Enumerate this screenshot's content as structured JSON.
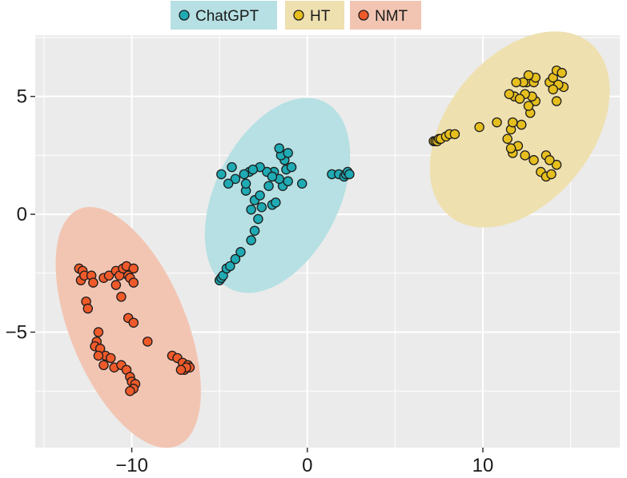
{
  "chart_data": {
    "type": "scatter",
    "title": "",
    "xlabel": "",
    "ylabel": "",
    "xlim": [
      -15.5,
      17.8
    ],
    "ylim": [
      -9.9,
      7.6
    ],
    "x_ticks": [
      -10,
      0,
      10
    ],
    "x_tick_labels": [
      "−10",
      "0",
      "10"
    ],
    "y_ticks": [
      5,
      0,
      -5
    ],
    "y_tick_labels": [
      "5",
      "0",
      "−5"
    ],
    "grid": true,
    "legend_position": "top",
    "colors": {
      "panel": "#ebebeb",
      "grid": "#ffffff",
      "ChatGPT": "#1faab4",
      "HT": "#e6bf1e",
      "NMT": "#ef5a2a",
      "ChatGPT_ellipse": "#b6e0e3",
      "HT_ellipse": "#efe0b0",
      "NMT_ellipse": "#f2c5b3"
    },
    "ellipses": [
      {
        "series": "ChatGPT",
        "cx": -1.7,
        "cy": 0.8,
        "rx": 4.9,
        "ry": 3.2,
        "angle_deg": 45
      },
      {
        "series": "HT",
        "cx": 12.1,
        "cy": 3.6,
        "rx": 5.6,
        "ry": 3.5,
        "angle_deg": 31
      },
      {
        "series": "NMT",
        "cx": -10.2,
        "cy": -4.8,
        "rx": 5.8,
        "ry": 3.1,
        "angle_deg": -56
      }
    ],
    "series": [
      {
        "name": "ChatGPT",
        "points": [
          [
            -5.0,
            -2.8
          ],
          [
            -4.9,
            -2.7
          ],
          [
            -4.8,
            -2.6
          ],
          [
            -4.6,
            -2.3
          ],
          [
            -4.4,
            -2.2
          ],
          [
            -4.1,
            -1.9
          ],
          [
            -3.8,
            -1.6
          ],
          [
            -3.2,
            -1.1
          ],
          [
            -3.0,
            -0.7
          ],
          [
            -2.8,
            -0.2
          ],
          [
            -3.2,
            0.2
          ],
          [
            -2.6,
            0.3
          ],
          [
            -3.0,
            0.6
          ],
          [
            -3.5,
            1.0
          ],
          [
            -2.7,
            0.8
          ],
          [
            -2.0,
            0.4
          ],
          [
            -1.8,
            0.5
          ],
          [
            -2.2,
            1.2
          ],
          [
            -1.9,
            1.8
          ],
          [
            -1.4,
            1.2
          ],
          [
            -1.6,
            1.5
          ],
          [
            -1.2,
            1.9
          ],
          [
            -0.9,
            2.0
          ],
          [
            -1.3,
            2.3
          ],
          [
            -1.5,
            2.5
          ],
          [
            -1.1,
            2.6
          ],
          [
            -1.6,
            2.8
          ],
          [
            -2.3,
            1.8
          ],
          [
            -2.0,
            1.6
          ],
          [
            -1.1,
            1.4
          ],
          [
            -2.7,
            2.0
          ],
          [
            -3.3,
            1.8
          ],
          [
            -3.6,
            1.7
          ],
          [
            -4.1,
            1.5
          ],
          [
            -4.5,
            1.3
          ],
          [
            -4.3,
            2.0
          ],
          [
            -4.9,
            1.7
          ],
          [
            -3.5,
            1.3
          ],
          [
            -3.1,
            1.9
          ],
          [
            -0.3,
            1.3
          ],
          [
            1.4,
            1.7
          ],
          [
            1.8,
            1.7
          ],
          [
            2.1,
            1.6
          ],
          [
            2.2,
            1.7
          ],
          [
            2.3,
            1.8
          ],
          [
            2.4,
            1.7
          ]
        ]
      },
      {
        "name": "HT",
        "points": [
          [
            7.2,
            3.1
          ],
          [
            7.3,
            3.1
          ],
          [
            7.4,
            3.1
          ],
          [
            7.5,
            3.2
          ],
          [
            7.6,
            3.2
          ],
          [
            7.9,
            3.3
          ],
          [
            8.1,
            3.4
          ],
          [
            8.4,
            3.4
          ],
          [
            9.8,
            3.7
          ],
          [
            10.8,
            3.9
          ],
          [
            11.4,
            3.2
          ],
          [
            11.7,
            2.6
          ],
          [
            12.0,
            2.9
          ],
          [
            12.4,
            2.5
          ],
          [
            12.9,
            2.3
          ],
          [
            13.3,
            1.8
          ],
          [
            13.6,
            1.6
          ],
          [
            13.9,
            1.7
          ],
          [
            14.2,
            2.1
          ],
          [
            13.6,
            2.5
          ],
          [
            11.6,
            3.6
          ],
          [
            11.7,
            3.9
          ],
          [
            12.2,
            3.8
          ],
          [
            12.7,
            4.3
          ],
          [
            13.0,
            4.8
          ],
          [
            12.8,
            5.0
          ],
          [
            12.4,
            5.1
          ],
          [
            11.8,
            5.0
          ],
          [
            11.5,
            5.1
          ],
          [
            12.5,
            5.6
          ],
          [
            12.9,
            5.6
          ],
          [
            13.0,
            5.8
          ],
          [
            13.8,
            5.6
          ],
          [
            14.0,
            5.8
          ],
          [
            14.2,
            6.1
          ],
          [
            14.5,
            6.0
          ],
          [
            14.6,
            5.4
          ],
          [
            14.3,
            5.5
          ],
          [
            12.3,
            5.6
          ],
          [
            11.9,
            5.6
          ],
          [
            12.6,
            4.6
          ],
          [
            12.1,
            4.9
          ],
          [
            14.2,
            4.8
          ],
          [
            12.6,
            5.9
          ],
          [
            14.0,
            5.3
          ],
          [
            13.8,
            2.3
          ],
          [
            11.6,
            2.8
          ]
        ]
      },
      {
        "name": "NMT",
        "points": [
          [
            -13.0,
            -2.3
          ],
          [
            -12.8,
            -2.4
          ],
          [
            -12.9,
            -2.8
          ],
          [
            -12.7,
            -2.6
          ],
          [
            -12.3,
            -2.6
          ],
          [
            -12.2,
            -2.9
          ],
          [
            -12.6,
            -3.7
          ],
          [
            -12.5,
            -4.0
          ],
          [
            -11.6,
            -2.7
          ],
          [
            -11.3,
            -2.6
          ],
          [
            -10.9,
            -2.4
          ],
          [
            -10.7,
            -2.6
          ],
          [
            -10.5,
            -2.3
          ],
          [
            -10.3,
            -2.2
          ],
          [
            -10.2,
            -2.6
          ],
          [
            -9.9,
            -2.3
          ],
          [
            -10.1,
            -2.7
          ],
          [
            -9.9,
            -2.9
          ],
          [
            -10.6,
            -3.5
          ],
          [
            -10.9,
            -3.0
          ],
          [
            -10.2,
            -4.4
          ],
          [
            -9.9,
            -4.6
          ],
          [
            -11.9,
            -5.0
          ],
          [
            -12.0,
            -5.4
          ],
          [
            -12.1,
            -5.6
          ],
          [
            -11.8,
            -5.7
          ],
          [
            -11.5,
            -6.0
          ],
          [
            -11.2,
            -6.1
          ],
          [
            -11.0,
            -6.5
          ],
          [
            -10.6,
            -6.4
          ],
          [
            -10.3,
            -6.6
          ],
          [
            -10.1,
            -6.9
          ],
          [
            -10.0,
            -7.1
          ],
          [
            -9.8,
            -7.2
          ],
          [
            -9.9,
            -7.4
          ],
          [
            -10.1,
            -7.5
          ],
          [
            -9.1,
            -5.4
          ],
          [
            -7.7,
            -6.0
          ],
          [
            -7.4,
            -6.1
          ],
          [
            -7.1,
            -6.3
          ],
          [
            -6.8,
            -6.4
          ],
          [
            -6.7,
            -6.5
          ],
          [
            -7.0,
            -6.6
          ],
          [
            -6.9,
            -6.5
          ],
          [
            -7.2,
            -6.6
          ],
          [
            -11.6,
            -6.4
          ],
          [
            -11.9,
            -6.0
          ]
        ]
      }
    ]
  }
}
